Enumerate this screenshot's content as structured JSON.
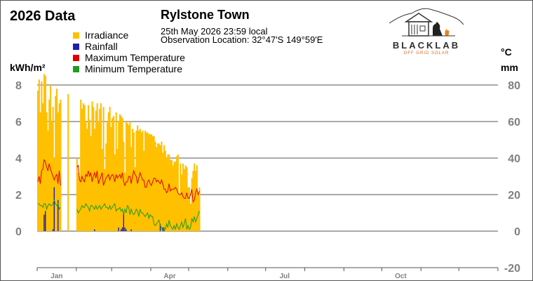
{
  "header": {
    "title": "2026 Data",
    "station": "Rylstone Town",
    "datetime": "25th May 2026  23:59 local",
    "location": "Observation Location: 32°47'S 149°59'E"
  },
  "logo": {
    "wordmark": "BLACKLAB",
    "tagline": "OFF GRID SOLAR"
  },
  "colors": {
    "irradiance": "#FFC000",
    "rainfall": "#1F1FAA",
    "max_temp": "#E00000",
    "min_temp": "#1E9E1E",
    "grid": "#555555",
    "tick_text": "#808080"
  },
  "chart_data": {
    "type": "bar",
    "title": "2026 Data",
    "legend_position": "top-left",
    "grid": true,
    "left_axis": {
      "label": "kWh/m²",
      "range": [
        0,
        8
      ],
      "ticks": [
        "8",
        "6",
        "4",
        "2",
        "0"
      ]
    },
    "right_axis": {
      "label_top": "°C",
      "label_bottom": "mm",
      "range": [
        -20,
        80
      ],
      "ticks": [
        "80",
        "60",
        "40",
        "20",
        "0",
        "-20"
      ]
    },
    "x_axis": {
      "months": [
        "Jan",
        "Apr",
        "Jul",
        "Oct"
      ],
      "days_in_year": 365
    },
    "series": [
      {
        "name": "Irradiance",
        "type": "bar",
        "axis": "left",
        "color": "#FFC000",
        "values": [
          7.7,
          8.3,
          6.5,
          8.2,
          7.0,
          8.6,
          8.5,
          6.5,
          5.5,
          7.2,
          8.0,
          6.0,
          6.8,
          4.0,
          7.4,
          7.8,
          6.5,
          7.0,
          7.2,
          0,
          0,
          0,
          0,
          0,
          7.5,
          0,
          0,
          0,
          0,
          0,
          0,
          4.0,
          3.2,
          3.0,
          7.2,
          6.7,
          7.0,
          6.9,
          6.0,
          5.6,
          6.9,
          6.1,
          5.2,
          7.1,
          6.8,
          5.6,
          6.6,
          7.0,
          6.0,
          6.7,
          7.0,
          4.5,
          6.8,
          3.4,
          4.8,
          6.0,
          6.5,
          6.8,
          5.7,
          6.2,
          6.3,
          4.2,
          6.5,
          4.5,
          6.0,
          6.4,
          6.3,
          6.2,
          4.9,
          3.2,
          6.0,
          5.9,
          5.8,
          6.0,
          4.6,
          5.6,
          5.4,
          3.5,
          5.5,
          5.8,
          5.5,
          5.6,
          5.4,
          5.5,
          4.4,
          5.5,
          5.4,
          5.4,
          5.3,
          5.3,
          5.3,
          5.2,
          5.2,
          4.9,
          4.6,
          4.8,
          4.8,
          4.7,
          4.9,
          4.3,
          4.7,
          4.4,
          4.0,
          4.2,
          4.2,
          3.9,
          3.9,
          3.6,
          3.8,
          3.8,
          4.1,
          4.2,
          2.0,
          3.7,
          3.1,
          3.7,
          3.4,
          3.6,
          3.5,
          2.4,
          2.4,
          1.5,
          2.9,
          3.3,
          3.7,
          3.3,
          3.6,
          2.0,
          2.4
        ],
        "gaps_note": ""
      },
      {
        "name": "Rainfall",
        "type": "bar",
        "axis": "right",
        "color": "#1F1FAA",
        "values": [
          0,
          0,
          0,
          0,
          0,
          9,
          11,
          0,
          0,
          0,
          0,
          0,
          1,
          24,
          0,
          0,
          17,
          0,
          0,
          0,
          0,
          0,
          0,
          0,
          0,
          0,
          0,
          0,
          0,
          0,
          0,
          0,
          0,
          0,
          0,
          0,
          0,
          0,
          0,
          0,
          0,
          0,
          0,
          0,
          0,
          1,
          0,
          0,
          0,
          0,
          0,
          0,
          0,
          0,
          0,
          0,
          0,
          0,
          0,
          0,
          0,
          0,
          0,
          0,
          2,
          0,
          1,
          2,
          10,
          2,
          1,
          0,
          0,
          0,
          1,
          0,
          0,
          0,
          0,
          0,
          0,
          0,
          0,
          0,
          0,
          0,
          0,
          0,
          0,
          0,
          0,
          0,
          0,
          0,
          0,
          0,
          0,
          4,
          0,
          2,
          1,
          0,
          0,
          0,
          0,
          0,
          0,
          0,
          0,
          0,
          0,
          0,
          0,
          0,
          0,
          0,
          0,
          0,
          0,
          0,
          0,
          0,
          0,
          0,
          0,
          0,
          0,
          0,
          0
        ]
      },
      {
        "name": "Maximum Temperature",
        "type": "line",
        "axis": "right",
        "color": "#E00000",
        "values": [
          27,
          30,
          26,
          33,
          34,
          39,
          38,
          35,
          33,
          37,
          34,
          32,
          30,
          28,
          30,
          31,
          26,
          33,
          25,
          null,
          null,
          null,
          null,
          null,
          38,
          null,
          null,
          null,
          null,
          null,
          null,
          35,
          36,
          28,
          27,
          30,
          28,
          27,
          31,
          30,
          33,
          30,
          32,
          27,
          30,
          32,
          29,
          33,
          26,
          28,
          30,
          32,
          25,
          27,
          29,
          30,
          31,
          28,
          30,
          31,
          30,
          27,
          31,
          29,
          30,
          31,
          29,
          32,
          27,
          25,
          27,
          27,
          30,
          30,
          26,
          30,
          33,
          31,
          30,
          26,
          29,
          32,
          30,
          28,
          28,
          24,
          24,
          27,
          28,
          26,
          25,
          27,
          29,
          29,
          27,
          28,
          27,
          26,
          28,
          26,
          23,
          23,
          21,
          22,
          26,
          22,
          23,
          23,
          23,
          24,
          23,
          21,
          20,
          20,
          21,
          19,
          18,
          18,
          21,
          18,
          18,
          20,
          23,
          16,
          17,
          21,
          23,
          20,
          22
        ]
      },
      {
        "name": "Minimum Temperature",
        "type": "line",
        "axis": "right",
        "color": "#1E9E1E",
        "values": [
          15,
          15,
          14,
          14,
          13,
          15,
          15,
          12,
          14,
          15,
          14,
          14,
          15,
          17,
          15,
          14,
          15,
          12,
          13,
          null,
          null,
          null,
          null,
          null,
          10,
          null,
          null,
          null,
          null,
          null,
          null,
          12,
          10,
          11,
          12,
          14,
          13,
          13,
          15,
          14,
          13,
          11,
          14,
          14,
          13,
          12,
          14,
          12,
          13,
          14,
          12,
          13,
          14,
          15,
          13,
          13,
          12,
          14,
          12,
          13,
          14,
          15,
          11,
          12,
          12,
          13,
          11,
          12,
          9,
          12,
          10,
          14,
          13,
          9,
          12,
          10,
          9,
          10,
          12,
          11,
          8,
          12,
          10,
          10,
          9,
          8,
          9,
          10,
          7,
          9,
          8,
          8,
          4,
          3,
          4,
          5,
          6,
          3,
          2,
          0,
          2,
          1,
          4,
          2,
          6,
          3,
          2,
          1,
          3,
          1,
          4,
          2,
          1,
          3,
          5,
          2,
          4,
          7,
          1,
          3,
          1,
          2,
          7,
          5,
          8,
          5,
          7,
          9,
          11
        ]
      }
    ]
  }
}
